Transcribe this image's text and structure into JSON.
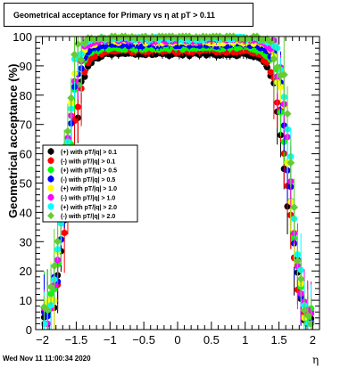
{
  "title": {
    "text": "Geometrical acceptance for Primary vs   η at pT > 0.11"
  },
  "footer": {
    "timestamp": "Wed Nov 11 11:00:34 2020"
  },
  "chart_data": {
    "type": "scatter",
    "title": "Geometrical acceptance for Primary vs   η at pT > 0.11",
    "xlabel": "η",
    "ylabel": "Geometrical acceptance (%)",
    "xlim": [
      -2.1,
      2.1
    ],
    "ylim": [
      0,
      100
    ],
    "x_ticks": [
      -2,
      -1.5,
      -1,
      -0.5,
      0,
      0.5,
      1,
      1.5,
      2
    ],
    "x_tick_labels": [
      "−2",
      "−1.5",
      "−1",
      "−0.5",
      "0",
      "0.5",
      "1",
      "1.5",
      "2"
    ],
    "y_ticks": [
      0,
      10,
      20,
      30,
      40,
      50,
      60,
      70,
      80,
      90,
      100
    ],
    "y_tick_labels": [
      "0",
      "10",
      "20",
      "30",
      "40",
      "50",
      "60",
      "70",
      "80",
      "90",
      "100"
    ],
    "grid": false,
    "legend_position": "left-middle",
    "series": [
      {
        "name": "(+) with pT/|q| > 0.1",
        "color": "#000000",
        "marker": "circle",
        "plateau": 94,
        "edge": 1.62,
        "width": 0.1,
        "offset": 0
      },
      {
        "name": "(-) with pT/|q| > 0.1",
        "color": "#ff0000",
        "marker": "circle",
        "plateau": 95,
        "edge": 1.63,
        "width": 0.1,
        "offset": 1
      },
      {
        "name": "(+) with pT/|q| > 0.5",
        "color": "#00ff00",
        "marker": "circle",
        "plateau": 96,
        "edge": 1.65,
        "width": 0.09,
        "offset": 2
      },
      {
        "name": "(-) with pT/|q| > 0.5",
        "color": "#0000ff",
        "marker": "circle",
        "plateau": 97,
        "edge": 1.66,
        "width": 0.09,
        "offset": 3
      },
      {
        "name": "(+) with pT/|q| > 1.0",
        "color": "#ffff00",
        "marker": "circle",
        "plateau": 98,
        "edge": 1.67,
        "width": 0.085,
        "offset": 4
      },
      {
        "name": "(-) with pT/|q| > 1.0",
        "color": "#ff00ff",
        "marker": "circle",
        "plateau": 98.5,
        "edge": 1.68,
        "width": 0.085,
        "offset": 5
      },
      {
        "name": "(+) with pT/|q| > 2.0",
        "color": "#00ffff",
        "marker": "circle",
        "plateau": 99,
        "edge": 1.69,
        "width": 0.08,
        "offset": 6
      },
      {
        "name": "(-) with pT/|q| > 2.0",
        "color": "#66cc33",
        "marker": "diamond",
        "plateau": 99.5,
        "edge": 1.7,
        "width": 0.08,
        "offset": 7
      }
    ]
  }
}
